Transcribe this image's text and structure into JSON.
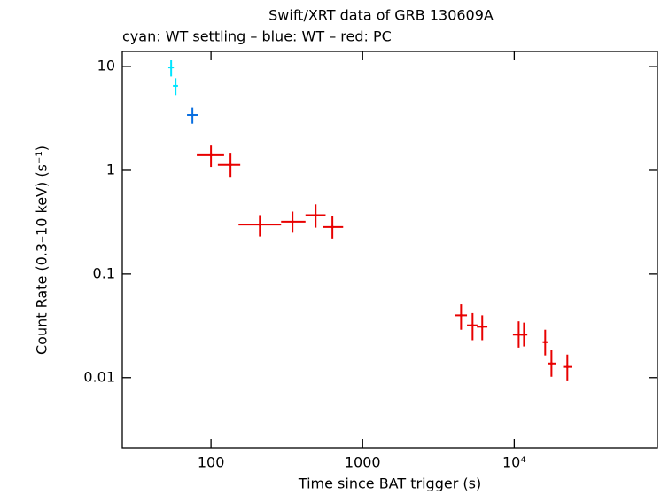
{
  "chart_data": {
    "type": "scatter",
    "title": "Swift/XRT data of GRB 130609A",
    "subtitle": "cyan: WT settling – blue: WT – red: PC",
    "x_label": "Time since BAT trigger (s)",
    "y_label": "Count Rate (0.3–10 keV) (s⁻¹)",
    "x_log": true,
    "y_log": true,
    "xlim": [
      26,
      88000
    ],
    "ylim": [
      0.0021,
      14
    ],
    "xticks": [
      100,
      1000,
      {
        "value": 10000,
        "label": "10⁴"
      }
    ],
    "yticks": [
      0.01,
      0.1,
      1,
      10
    ],
    "series": [
      {
        "color": "#00e5ff",
        "x": [
          54.6,
          58.4
        ],
        "values": [
          9.8,
          6.5
        ],
        "x_low": [
          52.3,
          56.1
        ],
        "x_high": [
          56.9,
          60.6
        ],
        "y_low": [
          8.0,
          5.3
        ],
        "y_high": [
          11.5,
          7.7
        ]
      },
      {
        "color": "#0a6fe0",
        "x": [
          75.4
        ],
        "values": [
          3.39
        ],
        "x_low": [
          69.5
        ],
        "x_high": [
          81.7
        ],
        "y_low": [
          2.8
        ],
        "y_high": [
          4.0
        ]
      },
      {
        "color": "#e80000",
        "x": [
          100,
          134.5,
          210,
          345,
          490,
          632,
          4460,
          5310,
          6150,
          10700,
          11600,
          16000,
          17600,
          22400
        ],
        "values": [
          1.4,
          1.13,
          0.3,
          0.32,
          0.37,
          0.284,
          0.04,
          0.032,
          0.031,
          0.026,
          0.026,
          0.022,
          0.0137,
          0.0127
        ],
        "x_low": [
          80.6,
          111,
          152,
          290,
          420,
          546,
          4070,
          4880,
          5670,
          9800,
          11000,
          15400,
          16700,
          21000
        ],
        "x_high": [
          122,
          156,
          290,
          420,
          570,
          744,
          4880,
          5720,
          6650,
          11400,
          12200,
          16700,
          18800,
          24000
        ],
        "y_low": [
          1.08,
          0.85,
          0.23,
          0.25,
          0.28,
          0.22,
          0.029,
          0.023,
          0.023,
          0.0195,
          0.02,
          0.0164,
          0.0102,
          0.0094
        ],
        "y_high": [
          1.73,
          1.45,
          0.37,
          0.4,
          0.47,
          0.36,
          0.051,
          0.042,
          0.04,
          0.035,
          0.034,
          0.029,
          0.0184,
          0.0167
        ]
      }
    ]
  }
}
